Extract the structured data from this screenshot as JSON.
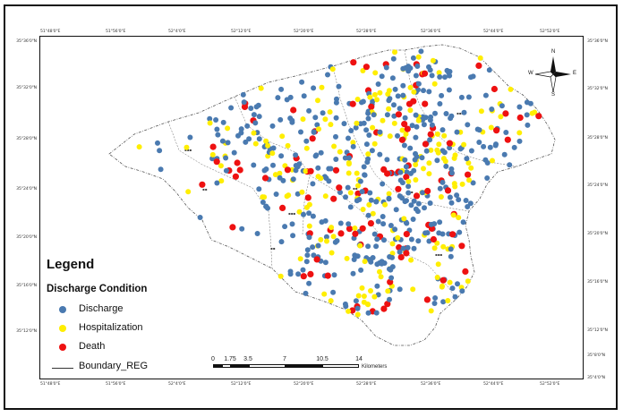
{
  "colors": {
    "discharge": "#4a7ab0",
    "hospitalization": "#ffee00",
    "death": "#ee1111",
    "boundary": "#555555"
  },
  "axes": {
    "top_ticks": [
      "51°48'0\"E",
      "51°56'0\"E",
      "52°4'0\"E",
      "52°12'0\"E",
      "52°20'0\"E",
      "52°28'0\"E",
      "52°36'0\"E",
      "52°44'0\"E",
      "52°52'0\"E"
    ],
    "bottom_ticks": [
      "51°48'0\"E",
      "51°56'0\"E",
      "52°4'0\"E",
      "52°12'0\"E",
      "52°20'0\"E",
      "52°28'0\"E",
      "52°36'0\"E",
      "52°44'0\"E",
      "52°52'0\"E"
    ],
    "left_ticks": [
      "35°36'0\"N",
      "35°32'0\"N",
      "35°28'0\"N",
      "35°24'0\"N",
      "35°20'0\"N",
      "35°16'0\"N",
      "35°12'0\"N",
      "35°8'0\"N"
    ],
    "right_ticks": [
      "35°36'0\"N",
      "35°32'0\"N",
      "35°28'0\"N",
      "35°24'0\"N",
      "35°20'0\"N",
      "35°16'0\"N",
      "35°12'0\"N",
      "35°8'0\"N",
      "35°4'0\"N"
    ]
  },
  "legend": {
    "title": "Legend",
    "subtitle": "Discharge Condition",
    "items": [
      {
        "label": "Discharge",
        "color": "#4a7ab0"
      },
      {
        "label": "Hospitalization",
        "color": "#ffee00"
      },
      {
        "label": "Death",
        "color": "#ee1111"
      }
    ],
    "boundary_label": "Boundary_REG"
  },
  "scale_bar": {
    "labels": [
      "0",
      "1.75",
      "3.5",
      "7",
      "10.5",
      "14"
    ],
    "unit": "Kilometers"
  },
  "north_arrow": {
    "N": "N",
    "S": "S",
    "E": "E",
    "W": "W"
  },
  "map_layers": {
    "boundary_icon": "region-boundary-polygon",
    "point_categories": [
      "Discharge",
      "Hospitalization",
      "Death"
    ]
  }
}
